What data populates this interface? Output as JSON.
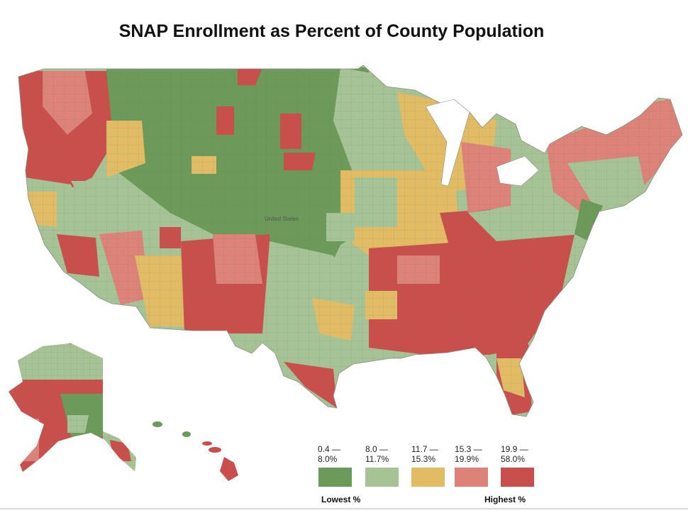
{
  "title": "SNAP Enrollment as Percent of County Population",
  "country_label": "United States",
  "colors": {
    "c1": "#6b9a5a",
    "c2": "#a5c395",
    "c3": "#e2bc65",
    "c4": "#dc8278",
    "c5": "#c94f4d",
    "border": "#6e7b6a"
  },
  "legend": {
    "bins": [
      {
        "top": "0.4 —",
        "bottom": "8.0%",
        "color": "#6b9a5a"
      },
      {
        "top": "8.0 —",
        "bottom": "11.7%",
        "color": "#a5c395"
      },
      {
        "top": "11.7 —",
        "bottom": "15.3%",
        "color": "#e2bc65"
      },
      {
        "top": "15.3 —",
        "bottom": "19.9%",
        "color": "#dc8278"
      },
      {
        "top": "19.9 —",
        "bottom": "58.0%",
        "color": "#c94f4d"
      }
    ],
    "low_label": "Lowest %",
    "high_label": "Highest %"
  }
}
